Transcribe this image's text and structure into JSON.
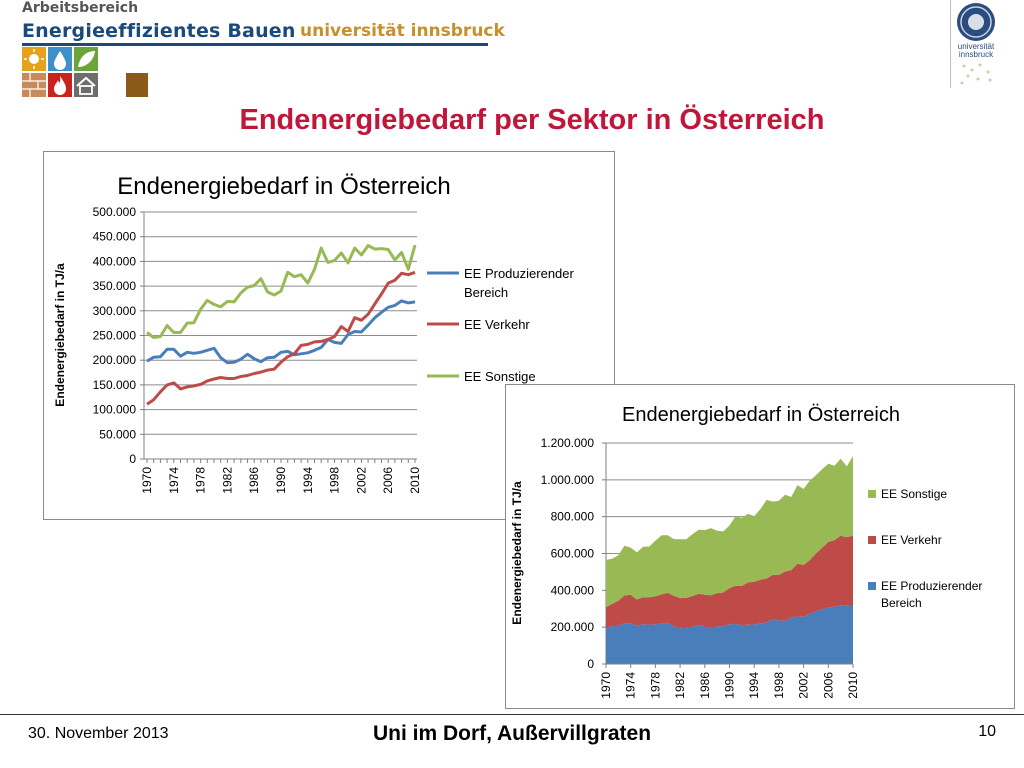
{
  "header": {
    "department": "Arbeitsbereich",
    "title": "Energieeffizientes Bauen",
    "university": "universität innsbruck",
    "seal_text": "universität innsbruck",
    "icons": [
      "sun-icon",
      "water-drop-icon",
      "leaf-icon",
      "brick-wall-icon",
      "flame-icon",
      "house-icon"
    ]
  },
  "slide": {
    "title": "Endenergiebedarf per Sektor in Österreich"
  },
  "footer": {
    "date": "30. November 2013",
    "center": "Uni im Dorf, Außervillgraten",
    "page": "10"
  },
  "colors": {
    "blue": "#4a7ebb",
    "red": "#be4b48",
    "green": "#98b954",
    "title_red": "#c0163a",
    "header_blue": "#1a4a7a",
    "uni_gold": "#c8902a"
  },
  "chart_data": [
    {
      "type": "line",
      "title": "Endenergiebedarf in Österreich",
      "ylabel": "Endenergiebedarf in TJ/a",
      "ylim": [
        0,
        500000
      ],
      "yticks": [
        "0",
        "50.000",
        "100.000",
        "150.000",
        "200.000",
        "250.000",
        "300.000",
        "350.000",
        "400.000",
        "450.000",
        "500.000"
      ],
      "x_labels": [
        "1970",
        "1974",
        "1978",
        "1982",
        "1986",
        "1990",
        "1994",
        "1998",
        "2002",
        "2006",
        "2010"
      ],
      "x": [
        1970,
        1971,
        1972,
        1973,
        1974,
        1975,
        1976,
        1977,
        1978,
        1979,
        1980,
        1981,
        1982,
        1983,
        1984,
        1985,
        1986,
        1987,
        1988,
        1989,
        1990,
        1991,
        1992,
        1993,
        1994,
        1995,
        1996,
        1997,
        1998,
        1999,
        2000,
        2001,
        2002,
        2003,
        2004,
        2005,
        2006,
        2007,
        2008,
        2009,
        2010
      ],
      "legend_position": "right",
      "grid": true,
      "series": [
        {
          "name": "EE Produzierender Bereich",
          "color": "#4a7ebb",
          "values": [
            198000,
            206000,
            207000,
            222000,
            222000,
            208000,
            216000,
            214000,
            216000,
            220000,
            224000,
            205000,
            195000,
            196000,
            202000,
            212000,
            203000,
            197000,
            205000,
            206000,
            216000,
            218000,
            211000,
            213000,
            215000,
            220000,
            226000,
            242000,
            236000,
            234000,
            252000,
            258000,
            257000,
            271000,
            286000,
            297000,
            307000,
            311000,
            320000,
            316000,
            318000
          ]
        },
        {
          "name": "EE Verkehr",
          "color": "#be4b48",
          "values": [
            111000,
            120000,
            136000,
            150000,
            154000,
            142000,
            146000,
            148000,
            151000,
            158000,
            162000,
            165000,
            163000,
            163000,
            167000,
            169000,
            173000,
            176000,
            180000,
            182000,
            196000,
            207000,
            213000,
            230000,
            232000,
            237000,
            238000,
            242000,
            248000,
            268000,
            258000,
            286000,
            281000,
            293000,
            314000,
            334000,
            356000,
            362000,
            376000,
            373000,
            378000
          ]
        },
        {
          "name": "EE Sonstige",
          "color": "#98b954",
          "values": [
            256000,
            246000,
            248000,
            270000,
            256000,
            256000,
            275000,
            276000,
            303000,
            321000,
            313000,
            308000,
            319000,
            318000,
            336000,
            348000,
            351000,
            365000,
            338000,
            332000,
            340000,
            378000,
            369000,
            373000,
            356000,
            384000,
            427000,
            398000,
            402000,
            417000,
            397000,
            427000,
            413000,
            432000,
            425000,
            426000,
            424000,
            403000,
            418000,
            384000,
            433000
          ]
        }
      ]
    },
    {
      "type": "area",
      "title": "Endenergiebedarf in Österreich",
      "ylabel": "Endenergiebedarf in TJ/a",
      "ylim": [
        0,
        1200000
      ],
      "yticks": [
        "0",
        "200.000",
        "400.000",
        "600.000",
        "800.000",
        "1.000.000",
        "1.200.000"
      ],
      "x_labels": [
        "1970",
        "1974",
        "1978",
        "1982",
        "1986",
        "1990",
        "1994",
        "1998",
        "2002",
        "2006",
        "2010"
      ],
      "legend_position": "right",
      "grid": true,
      "stacked": true,
      "series_order_bottom_to_top": [
        "EE Produzierender Bereich",
        "EE Verkehr",
        "EE Sonstige"
      ],
      "legend_order": [
        "EE Sonstige",
        "EE Verkehr",
        "EE Produzierender Bereich"
      ]
    }
  ]
}
